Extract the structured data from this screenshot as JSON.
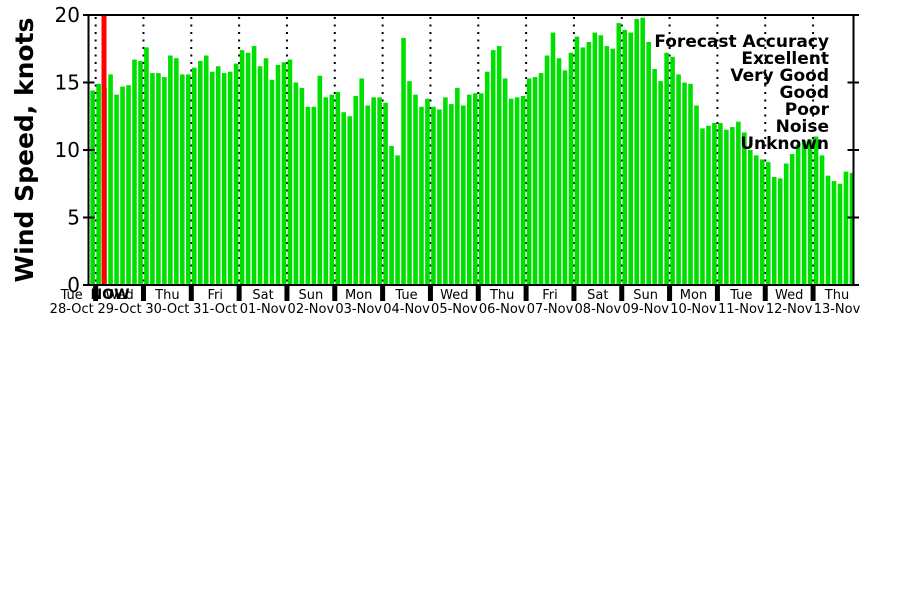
{
  "chart": {
    "ylabel": "Wind Speed, knots",
    "now_label": "NOW",
    "background": "#ffffff",
    "bar_color": "#00e000",
    "now_color": "#ff0000",
    "axis_color": "#000000",
    "legend": {
      "title": "Forecast Accuracy",
      "entries": [
        {
          "label": "Excellent",
          "color": "#00dd00"
        },
        {
          "label": "Very Good",
          "color": "#0000ff"
        },
        {
          "label": "Good",
          "color": "#9933ff"
        },
        {
          "label": "Poor",
          "color": "#ffcc00"
        },
        {
          "label": "Noise",
          "color": "#ff0000"
        },
        {
          "label": "Unknown",
          "color": "#000000"
        }
      ]
    }
  },
  "chart_data": {
    "type": "bar",
    "title": "",
    "xlabel": "",
    "ylabel": "Wind Speed, knots",
    "unit": "knots",
    "ylim": [
      0,
      20
    ],
    "yticks": [
      0,
      5,
      10,
      15,
      20
    ],
    "bars_per_day": 8,
    "bar_interval_hours": 3,
    "grid": "dotted vertical lines at day boundaries",
    "legend_position": "upper right",
    "now_marker_after_day_index": 0,
    "days": [
      {
        "day": "Tue",
        "date": "28-Oct",
        "values": [
          null,
          null,
          null,
          null,
          null,
          null,
          null,
          14.4
        ]
      },
      {
        "day": "Wed",
        "date": "29-Oct",
        "values": [
          14.9,
          14.6,
          15.6,
          14.1,
          14.7,
          14.8,
          16.7,
          16.6
        ]
      },
      {
        "day": "Thu",
        "date": "30-Oct",
        "values": [
          17.6,
          15.7,
          15.7,
          15.4,
          17.0,
          16.8,
          15.6,
          15.6
        ]
      },
      {
        "day": "Fri",
        "date": "31-Oct",
        "values": [
          16.1,
          16.6,
          17.0,
          15.8,
          16.2,
          15.7,
          15.8,
          16.4
        ]
      },
      {
        "day": "Sat",
        "date": "01-Nov",
        "values": [
          17.4,
          17.2,
          17.7,
          16.2,
          16.8,
          15.2,
          16.3,
          16.5
        ]
      },
      {
        "day": "Sun",
        "date": "02-Nov",
        "values": [
          16.7,
          15.0,
          14.6,
          13.2,
          13.2,
          15.5,
          13.9,
          14.1
        ]
      },
      {
        "day": "Mon",
        "date": "03-Nov",
        "values": [
          14.3,
          12.8,
          12.5,
          14.0,
          15.3,
          13.3,
          13.9,
          13.9
        ]
      },
      {
        "day": "Tue",
        "date": "04-Nov",
        "values": [
          13.5,
          10.3,
          9.6,
          18.3,
          15.1,
          14.1,
          13.2,
          13.8
        ]
      },
      {
        "day": "Wed",
        "date": "05-Nov",
        "values": [
          13.2,
          13.0,
          13.9,
          13.4,
          14.6,
          13.3,
          14.1,
          14.2
        ]
      },
      {
        "day": "Thu",
        "date": "06-Nov",
        "values": [
          14.2,
          15.8,
          17.4,
          17.7,
          15.3,
          13.8,
          13.9,
          14.0
        ]
      },
      {
        "day": "Fri",
        "date": "07-Nov",
        "values": [
          15.3,
          15.4,
          15.7,
          17.0,
          18.7,
          16.8,
          15.9,
          17.2
        ]
      },
      {
        "day": "Sat",
        "date": "08-Nov",
        "values": [
          18.4,
          17.6,
          18.0,
          18.7,
          18.5,
          17.7,
          17.5,
          19.4
        ]
      },
      {
        "day": "Sun",
        "date": "09-Nov",
        "values": [
          18.9,
          18.7,
          19.7,
          19.8,
          18.0,
          16.0,
          15.1,
          17.2
        ]
      },
      {
        "day": "Mon",
        "date": "10-Nov",
        "values": [
          16.9,
          15.6,
          15.0,
          14.9,
          13.3,
          11.6,
          11.8,
          12.0
        ]
      },
      {
        "day": "Tue",
        "date": "11-Nov",
        "values": [
          12.0,
          11.5,
          11.7,
          12.1,
          11.3,
          10.0,
          9.6,
          9.3
        ]
      },
      {
        "day": "Wed",
        "date": "12-Nov",
        "values": [
          9.1,
          8.0,
          7.9,
          9.0,
          9.7,
          10.4,
          10.7,
          10.8
        ]
      },
      {
        "day": "Thu",
        "date": "13-Nov",
        "values": [
          11.0,
          9.6,
          8.1,
          7.7,
          7.5,
          8.4,
          8.3
        ]
      }
    ]
  }
}
